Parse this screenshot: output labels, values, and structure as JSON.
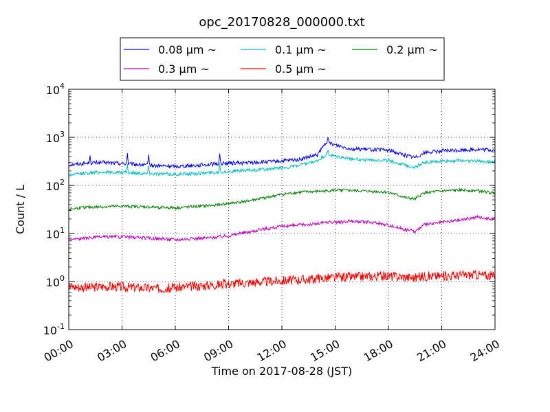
{
  "chart_data": {
    "type": "line",
    "title": "opc_20170828_000000.txt",
    "xlabel": "Time on 2017-08-28 (JST)",
    "ylabel": "Count / L",
    "xlim": [
      0,
      24
    ],
    "ylim": [
      0.1,
      10000
    ],
    "yscale": "log",
    "grid": true,
    "legend_position": "top (above plot)",
    "x_ticks": [
      {
        "x": 0,
        "label": "00:00"
      },
      {
        "x": 3,
        "label": "03:00"
      },
      {
        "x": 6,
        "label": "06:00"
      },
      {
        "x": 9,
        "label": "09:00"
      },
      {
        "x": 12,
        "label": "12:00"
      },
      {
        "x": 15,
        "label": "15:00"
      },
      {
        "x": 18,
        "label": "18:00"
      },
      {
        "x": 21,
        "label": "21:00"
      },
      {
        "x": 24,
        "label": "24:00"
      }
    ],
    "y_ticks": [
      {
        "y": 0.1,
        "base": "10",
        "exp": "-1"
      },
      {
        "y": 1,
        "base": "10",
        "exp": "0"
      },
      {
        "y": 10,
        "base": "10",
        "exp": "1"
      },
      {
        "y": 100,
        "base": "10",
        "exp": "2"
      },
      {
        "y": 1000,
        "base": "10",
        "exp": "3"
      },
      {
        "y": 10000,
        "base": "10",
        "exp": "4"
      }
    ],
    "x": [
      0,
      1,
      2,
      3,
      4,
      5,
      6,
      7,
      8,
      9,
      10,
      11,
      12,
      13,
      14,
      14.5,
      15,
      16,
      17,
      18,
      19,
      19.5,
      20,
      21,
      22,
      23,
      24
    ],
    "series": [
      {
        "name": "0.08 μm ~",
        "color": "#0000ff",
        "noise": 0.04,
        "values": [
          270,
          290,
          300,
          285,
          270,
          255,
          250,
          260,
          275,
          290,
          295,
          305,
          320,
          345,
          430,
          800,
          700,
          570,
          560,
          540,
          420,
          380,
          480,
          520,
          540,
          560,
          540
        ],
        "spikes": [
          {
            "x": 1.2,
            "y": 420
          },
          {
            "x": 3.3,
            "y": 470
          },
          {
            "x": 4.5,
            "y": 440
          },
          {
            "x": 8.5,
            "y": 460
          },
          {
            "x": 14.6,
            "y": 1000
          }
        ]
      },
      {
        "name": "0.1 μm ~",
        "color": "#00bfbf",
        "noise": 0.035,
        "values": [
          165,
          180,
          190,
          185,
          180,
          175,
          170,
          175,
          185,
          195,
          205,
          215,
          230,
          260,
          320,
          440,
          400,
          350,
          340,
          330,
          260,
          240,
          300,
          320,
          330,
          320,
          310
        ],
        "spikes": [
          {
            "x": 3.3,
            "y": 280
          },
          {
            "x": 4.5,
            "y": 260
          },
          {
            "x": 8.5,
            "y": 290
          },
          {
            "x": 14.6,
            "y": 550
          }
        ]
      },
      {
        "name": "0.2 μm ~",
        "color": "#008000",
        "noise": 0.03,
        "values": [
          32,
          35,
          36,
          37,
          36,
          35,
          34,
          36,
          38,
          42,
          47,
          55,
          65,
          72,
          75,
          76,
          80,
          78,
          75,
          72,
          55,
          52,
          70,
          76,
          80,
          78,
          68
        ],
        "spikes": []
      },
      {
        "name": "0.3 μm ~",
        "color": "#bf00bf",
        "noise": 0.035,
        "values": [
          7.5,
          8,
          8.5,
          8.5,
          8.2,
          7.8,
          7.5,
          7.8,
          8.2,
          9,
          10.5,
          12.5,
          14,
          15,
          16,
          17,
          17,
          18,
          17,
          15,
          12,
          11,
          15,
          17,
          19,
          22,
          20
        ],
        "spikes": []
      },
      {
        "name": "0.5 μm ~",
        "color": "#ff0000",
        "noise": 0.1,
        "values": [
          0.8,
          0.75,
          0.8,
          0.78,
          0.75,
          0.72,
          0.75,
          0.8,
          0.85,
          0.9,
          0.95,
          1.0,
          1.05,
          1.1,
          1.15,
          1.2,
          1.2,
          1.25,
          1.3,
          1.3,
          1.25,
          1.2,
          1.3,
          1.3,
          1.35,
          1.4,
          1.3
        ],
        "spikes": []
      }
    ]
  }
}
